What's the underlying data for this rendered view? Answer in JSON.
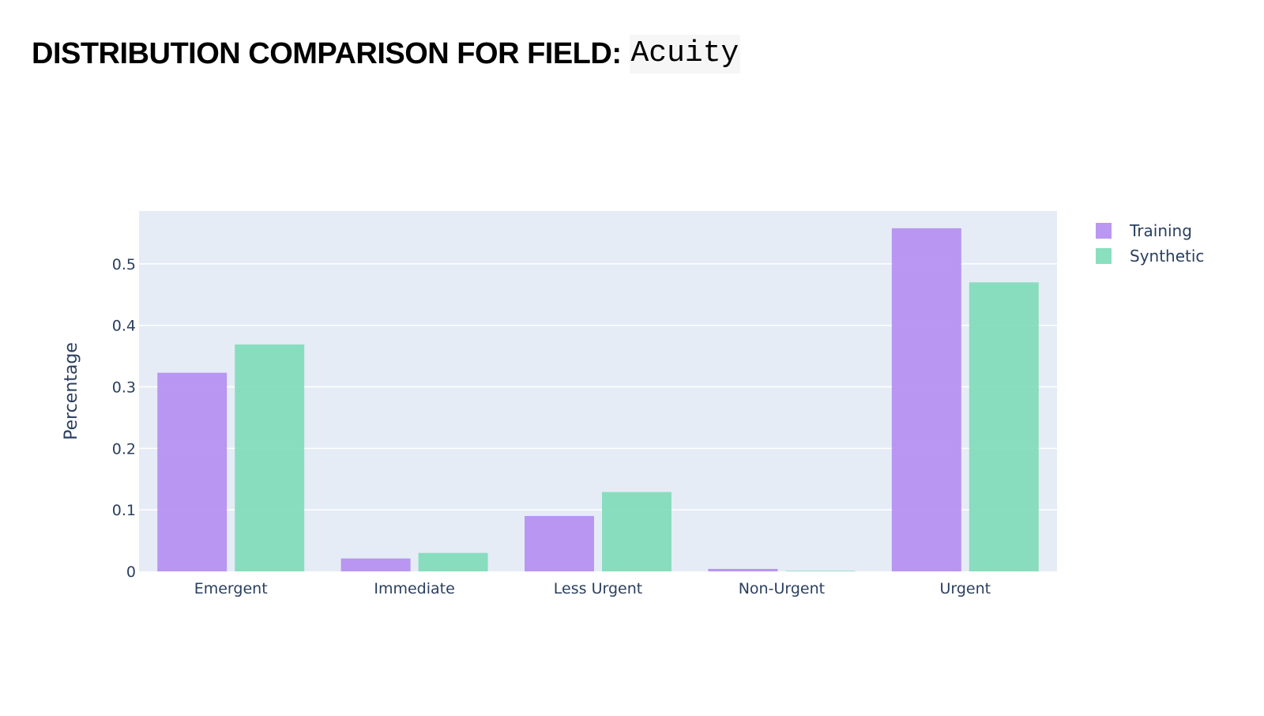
{
  "header": {
    "title_prefix": "DISTRIBUTION COMPARISON FOR FIELD:",
    "field_name": "Acuity"
  },
  "chart_data": {
    "type": "bar",
    "barmode": "group",
    "categories": [
      "Emergent",
      "Immediate",
      "Less Urgent",
      "Non-Urgent",
      "Urgent"
    ],
    "series": [
      {
        "name": "Training",
        "color": "#b28df1",
        "values": [
          0.323,
          0.021,
          0.09,
          0.004,
          0.558
        ]
      },
      {
        "name": "Synthetic",
        "color": "#7ddcb8",
        "values": [
          0.369,
          0.03,
          0.129,
          0.001,
          0.47
        ]
      }
    ],
    "ylabel": "Percentage",
    "ylim": [
      0,
      0.586
    ],
    "yticks": [
      0,
      0.1,
      0.2,
      0.3,
      0.4,
      0.5
    ],
    "ytick_labels": [
      "0",
      "0.1",
      "0.2",
      "0.3",
      "0.4",
      "0.5"
    ],
    "grid": true,
    "plot_background": "#e5ecf6",
    "legend_position": "top-right"
  }
}
